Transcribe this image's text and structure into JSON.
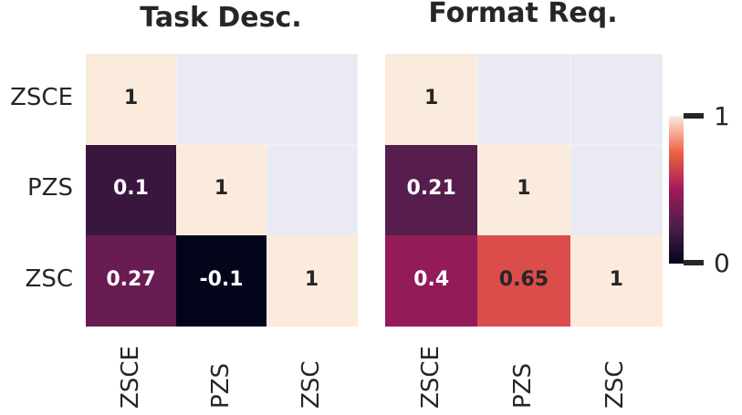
{
  "chart_data": [
    {
      "type": "heatmap",
      "title": "Task Desc.",
      "rows": [
        "ZSCE",
        "PZS",
        "ZSC"
      ],
      "cols": [
        "ZSCE",
        "PZS",
        "ZSC"
      ],
      "values": [
        [
          1,
          null,
          null
        ],
        [
          0.1,
          1,
          null
        ],
        [
          0.27,
          -0.1,
          1
        ]
      ],
      "labels": [
        [
          "1",
          "",
          ""
        ],
        [
          "0.1",
          "1",
          ""
        ],
        [
          "0.27",
          "-0.1",
          "1"
        ]
      ]
    },
    {
      "type": "heatmap",
      "title": "Format Req.",
      "rows": [
        "ZSCE",
        "PZS",
        "ZSC"
      ],
      "cols": [
        "ZSCE",
        "PZS",
        "ZSC"
      ],
      "values": [
        [
          1,
          null,
          null
        ],
        [
          0.21,
          1,
          null
        ],
        [
          0.4,
          0.65,
          1
        ]
      ],
      "labels": [
        [
          "1",
          "",
          ""
        ],
        [
          "0.21",
          "1",
          ""
        ],
        [
          "0.4",
          "0.65",
          "1"
        ]
      ]
    }
  ],
  "colorbar": {
    "min": 0,
    "max": 1,
    "ticks": [
      "0",
      "1"
    ],
    "colormap": "rocket"
  },
  "colors": {
    "masked": "#eaeaf2",
    "text_dark": "#262626",
    "text_light": "#ffffff"
  }
}
